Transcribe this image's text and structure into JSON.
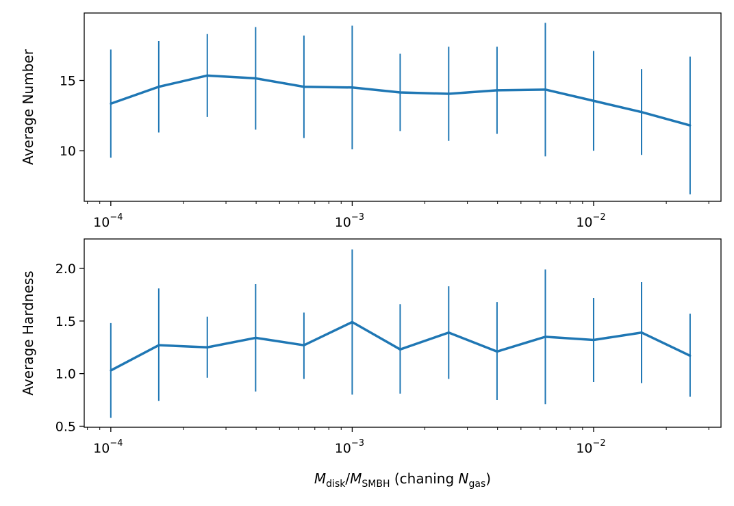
{
  "chart_data": [
    {
      "type": "line",
      "panel": "top",
      "xscale": "log",
      "xlabel": "",
      "ylabel": "Average Number",
      "xlim": [
        7.76e-05,
        0.0337
      ],
      "ylim": [
        6.4,
        19.8
      ],
      "yticks": [
        10,
        15
      ],
      "ytick_labels": [
        "10",
        "15"
      ],
      "xticks": [
        {
          "value": 0.0001,
          "base": "10",
          "exp": "−4"
        },
        {
          "value": 0.001,
          "base": "10",
          "exp": "−3"
        },
        {
          "value": 0.01,
          "base": "10",
          "exp": "−2"
        }
      ],
      "color": "#1f77b4",
      "x": [
        0.0001,
        0.000158,
        0.000251,
        0.000398,
        0.000631,
        0.001,
        0.00158,
        0.00251,
        0.00398,
        0.00631,
        0.01,
        0.0158,
        0.0251
      ],
      "y": [
        13.35,
        14.55,
        15.35,
        15.15,
        14.55,
        14.5,
        14.15,
        14.05,
        14.3,
        14.35,
        13.55,
        12.75,
        11.8
      ],
      "yerr_low": [
        9.5,
        11.3,
        12.4,
        11.5,
        10.9,
        10.1,
        11.4,
        10.7,
        11.2,
        9.6,
        10.0,
        9.7,
        6.9
      ],
      "yerr_high": [
        17.2,
        17.8,
        18.3,
        18.8,
        18.2,
        18.9,
        16.9,
        17.4,
        17.4,
        19.1,
        17.1,
        15.8,
        16.7
      ]
    },
    {
      "type": "line",
      "panel": "bottom",
      "xscale": "log",
      "xlabel": "",
      "xlabel_parts": {
        "m1": "M",
        "m1_sub": "disk",
        "slash": "/",
        "m2": "M",
        "m2_sub": "SMBH",
        "mid": " (chaning ",
        "n": "N",
        "n_sub": "gas",
        "end": ")"
      },
      "ylabel": "Average Hardness",
      "xlim": [
        7.76e-05,
        0.0337
      ],
      "ylim": [
        0.49,
        2.28
      ],
      "yticks": [
        0.5,
        1.0,
        1.5,
        2.0
      ],
      "ytick_labels": [
        "0.5",
        "1.0",
        "1.5",
        "2.0"
      ],
      "xticks": [
        {
          "value": 0.0001,
          "base": "10",
          "exp": "−4"
        },
        {
          "value": 0.001,
          "base": "10",
          "exp": "−3"
        },
        {
          "value": 0.01,
          "base": "10",
          "exp": "−2"
        }
      ],
      "color": "#1f77b4",
      "x": [
        0.0001,
        0.000158,
        0.000251,
        0.000398,
        0.000631,
        0.001,
        0.00158,
        0.00251,
        0.00398,
        0.00631,
        0.01,
        0.0158,
        0.0251
      ],
      "y": [
        1.03,
        1.27,
        1.25,
        1.34,
        1.27,
        1.49,
        1.23,
        1.39,
        1.21,
        1.35,
        1.32,
        1.39,
        1.17
      ],
      "yerr_low": [
        0.58,
        0.74,
        0.96,
        0.83,
        0.95,
        0.8,
        0.81,
        0.95,
        0.75,
        0.71,
        0.92,
        0.91,
        0.78
      ],
      "yerr_high": [
        1.48,
        1.81,
        1.54,
        1.85,
        1.58,
        2.18,
        1.66,
        1.83,
        1.68,
        1.99,
        1.72,
        1.87,
        1.57
      ]
    }
  ]
}
